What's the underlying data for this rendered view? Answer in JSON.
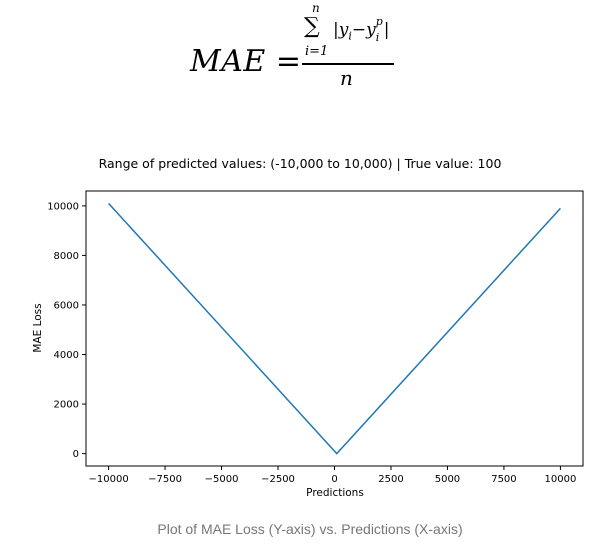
{
  "formula": {
    "lhs": "MAE =",
    "sum_symbol": "∑",
    "sum_upper": "n",
    "sum_lower": "i=1",
    "numerator_open": "|y",
    "numerator_sub": "i",
    "numerator_minus": "−y",
    "numerator_sup": "p",
    "numerator_sub2": "i",
    "numerator_close": "|",
    "denominator": "n"
  },
  "caption": "Plot of MAE Loss (Y-axis) vs. Predictions (X-axis)",
  "colors": {
    "line": "#1f77b4",
    "axis": "#000000",
    "caption": "#777777"
  },
  "chart_data": {
    "type": "line",
    "title": "Range of predicted values: (-10,000 to 10,000) | True value: 100",
    "xlabel": "Predictions",
    "ylabel": "MAE Loss",
    "xlim": [
      -11000,
      11000
    ],
    "ylim": [
      -500,
      10600
    ],
    "x_ticks": [
      -10000,
      -7500,
      -5000,
      -2500,
      0,
      2500,
      5000,
      7500,
      10000
    ],
    "x_tick_labels": [
      "−10000",
      "−7500",
      "−5000",
      "−2500",
      "0",
      "2500",
      "5000",
      "7500",
      "10000"
    ],
    "y_ticks": [
      0,
      2000,
      4000,
      6000,
      8000,
      10000
    ],
    "y_tick_labels": [
      "0",
      "2000",
      "4000",
      "6000",
      "8000",
      "10000"
    ],
    "grid": false,
    "series": [
      {
        "x": [
          -10000,
          100,
          10000
        ],
        "y": [
          10100,
          0,
          9900
        ]
      }
    ]
  }
}
